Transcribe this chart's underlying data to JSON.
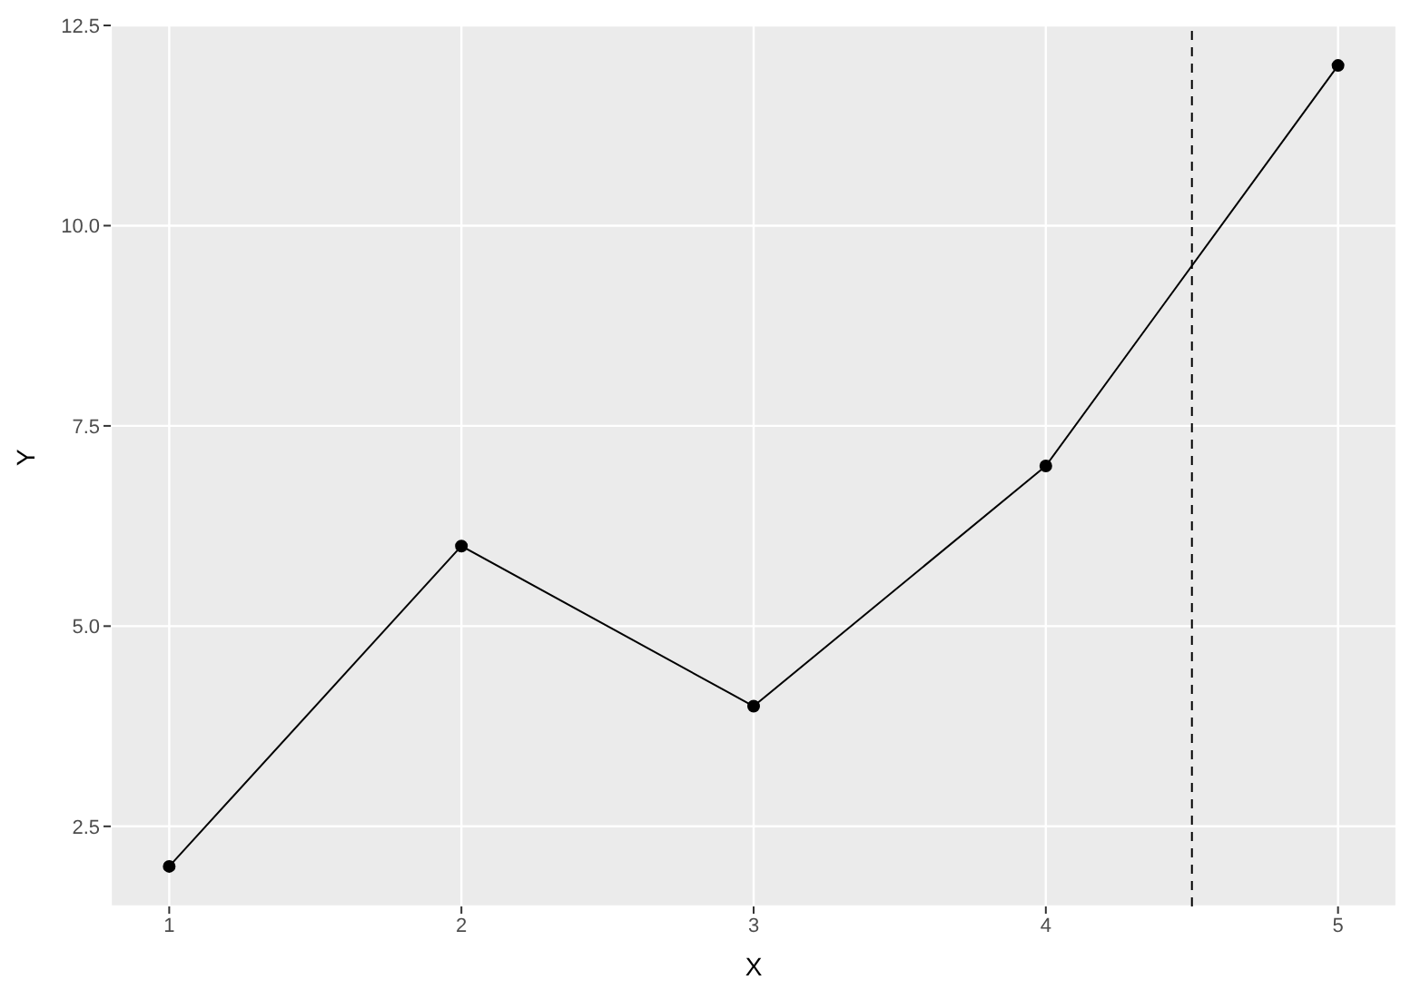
{
  "chart_data": {
    "type": "line",
    "xlabel": "X",
    "ylabel": "Y",
    "x": [
      1,
      2,
      3,
      4,
      5
    ],
    "values": [
      2,
      6,
      4,
      7,
      12
    ],
    "color": "#000000",
    "marker": "circle",
    "line_style": "solid",
    "xlim": [
      0.8,
      5.2
    ],
    "xticks": [
      1,
      2,
      3,
      4,
      5
    ],
    "ylim": [
      1.5,
      12.5
    ],
    "yticks": [
      2.5,
      {
        "value": 5,
        "label": "5.0"
      },
      7.5,
      {
        "value": 10,
        "label": "10.0"
      },
      12.5
    ],
    "grid": true,
    "ref_lines": [
      {
        "axis": "x",
        "value": 4.5,
        "color": "#000000",
        "line_style": "dashed"
      }
    ]
  }
}
